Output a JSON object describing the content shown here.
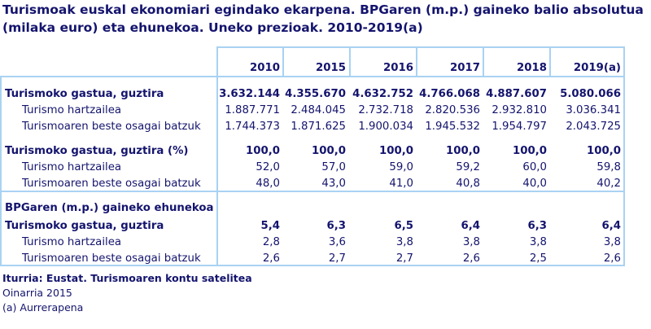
{
  "title": "Turismoak euskal ekonomiari egindako ekarpena. BPGaren (m.p.) gaineko balio absolutua (milaka euro) eta ehunekoa. Uneko prezioak. 2010-2019(a)",
  "columns": [
    "2010",
    "2015",
    "2016",
    "2017",
    "2018",
    "2019(a)"
  ],
  "rows": [
    {
      "label": "Turismoko gastua, guztira",
      "bold": true,
      "values": [
        "3.632.144",
        "4.355.670",
        "4.632.752",
        "4.766.068",
        "4.887.607",
        "5.080.066"
      ]
    },
    {
      "label": "Turismo hartzailea",
      "values": [
        "1.887.771",
        "2.484.045",
        "2.732.718",
        "2.820.536",
        "2.932.810",
        "3.036.341"
      ]
    },
    {
      "label": "Turismoaren beste osagai batzuk",
      "values": [
        "1.744.373",
        "1.871.625",
        "1.900.034",
        "1.945.532",
        "1.954.797",
        "2.043.725"
      ]
    },
    {
      "label": "Turismoko gastua, guztira (%)",
      "bold": true,
      "values": [
        "100,0",
        "100,0",
        "100,0",
        "100,0",
        "100,0",
        "100,0"
      ]
    },
    {
      "label": "Turismo hartzailea",
      "values": [
        "52,0",
        "57,0",
        "59,0",
        "59,2",
        "60,0",
        "59,8"
      ]
    },
    {
      "label": "Turismoaren beste osagai batzuk",
      "values": [
        "48,0",
        "43,0",
        "41,0",
        "40,8",
        "40,0",
        "40,2"
      ]
    },
    {
      "label": "BPGaren (m.p.) gaineko ehunekoa",
      "bold": true,
      "values": []
    },
    {
      "label": "Turismoko gastua, guztira",
      "bold": true,
      "values": [
        "5,4",
        "6,3",
        "6,5",
        "6,4",
        "6,3",
        "6,4"
      ]
    },
    {
      "label": "Turismo hartzailea",
      "values": [
        "2,8",
        "3,6",
        "3,8",
        "3,8",
        "3,8",
        "3,8"
      ]
    },
    {
      "label": "Turismoaren beste osagai batzuk",
      "values": [
        "2,6",
        "2,7",
        "2,7",
        "2,6",
        "2,5",
        "2,6"
      ]
    }
  ],
  "footer": {
    "source": "Iturria: Eustat. Turismoaren kontu satelitea",
    "base": "Oinarria 2015",
    "note": "(a) Aurrerapena"
  },
  "colors": {
    "text": "#14146e",
    "border": "#a9d2f3"
  }
}
